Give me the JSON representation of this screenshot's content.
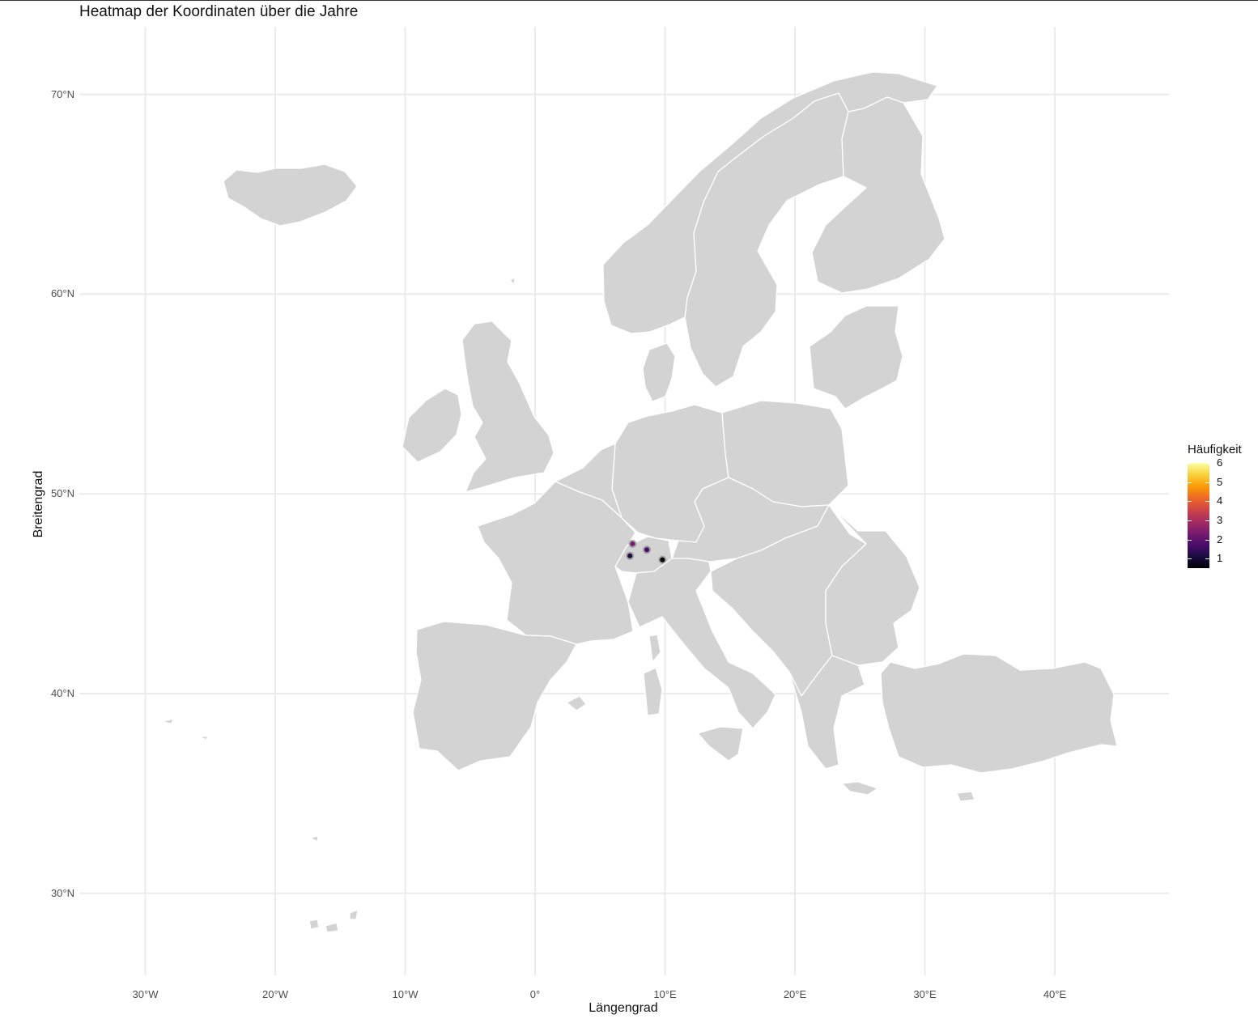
{
  "title": "Heatmap der Koordinaten über die Jahre",
  "x_axis": {
    "label": "Längengrad",
    "ticks": [
      {
        "lon": -30,
        "label": "30°W"
      },
      {
        "lon": -20,
        "label": "20°W"
      },
      {
        "lon": -10,
        "label": "10°W"
      },
      {
        "lon": 0,
        "label": "0°"
      },
      {
        "lon": 10,
        "label": "10°E"
      },
      {
        "lon": 20,
        "label": "20°E"
      },
      {
        "lon": 30,
        "label": "30°E"
      },
      {
        "lon": 40,
        "label": "40°E"
      }
    ]
  },
  "y_axis": {
    "label": "Breitengrad",
    "ticks": [
      {
        "lat": 70,
        "label": "70°N"
      },
      {
        "lat": 60,
        "label": "60°N"
      },
      {
        "lat": 50,
        "label": "50°N"
      },
      {
        "lat": 40,
        "label": "40°N"
      },
      {
        "lat": 30,
        "label": "30°N"
      }
    ]
  },
  "legend": {
    "title": "Häufigkeit",
    "min": 0.5,
    "max": 6,
    "colormap": "inferno",
    "ticks": [
      1,
      2,
      3,
      4,
      5,
      6
    ]
  },
  "chart_data": {
    "type": "heatmap",
    "title": "Heatmap der Koordinaten über die Jahre",
    "xlabel": "Längengrad",
    "ylabel": "Breitengrad",
    "xlim": [
      -35.5,
      48.9
    ],
    "ylim": [
      25.6,
      73.4
    ],
    "basemap": "Europe countries, light grey fill, white borders",
    "points": [
      {
        "lon": 7.5,
        "lat": 47.5,
        "value": 2.5
      },
      {
        "lon": 8.6,
        "lat": 47.2,
        "value": 1.8
      },
      {
        "lon": 7.3,
        "lat": 46.9,
        "value": 1.2
      },
      {
        "lon": 9.8,
        "lat": 46.7,
        "value": 0.8
      }
    ],
    "grid": true
  },
  "colors": {
    "land": "#d3d3d3",
    "border": "#ffffff",
    "grid": "#ebebeb"
  }
}
